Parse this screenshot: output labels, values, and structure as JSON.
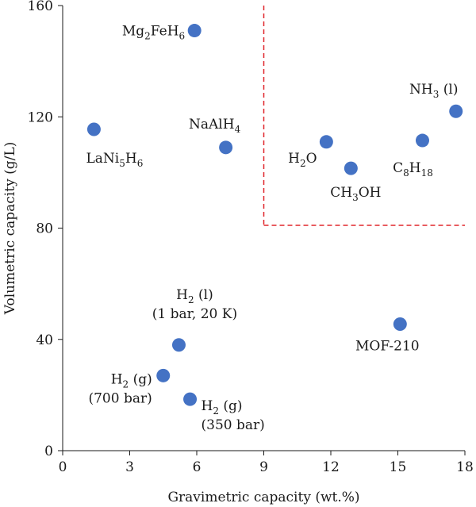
{
  "chart_data": {
    "type": "scatter",
    "xlabel": "Gravimetric capacity (wt.%)",
    "ylabel": "Volumetric capacity (g/L)",
    "xlim": [
      0,
      18
    ],
    "ylim": [
      0,
      160
    ],
    "xticks": [
      0,
      3,
      6,
      9,
      12,
      15,
      18
    ],
    "yticks": [
      0,
      40,
      80,
      120,
      160
    ],
    "grid": false,
    "marker_color": "#4472c4",
    "region_color": "#e0262b",
    "region": {
      "x_min": 9,
      "y_min": 81
    },
    "points": [
      {
        "x": 5.9,
        "y": 151,
        "label": [
          {
            "t": "Mg"
          },
          {
            "t": "2",
            "sub": true
          },
          {
            "t": "FeH"
          },
          {
            "t": "6",
            "sub": true
          }
        ]
      },
      {
        "x": 1.4,
        "y": 115.5,
        "label": [
          {
            "t": "LaNi"
          },
          {
            "t": "5",
            "sub": true
          },
          {
            "t": "H"
          },
          {
            "t": "6",
            "sub": true
          }
        ]
      },
      {
        "x": 7.3,
        "y": 109,
        "label": [
          {
            "t": "NaAlH"
          },
          {
            "t": "4",
            "sub": true
          }
        ]
      },
      {
        "x": 11.8,
        "y": 111,
        "label": [
          {
            "t": "H"
          },
          {
            "t": "2",
            "sub": true
          },
          {
            "t": "O"
          }
        ]
      },
      {
        "x": 12.9,
        "y": 101.5,
        "label": [
          {
            "t": "CH"
          },
          {
            "t": "3",
            "sub": true
          },
          {
            "t": "OH"
          }
        ]
      },
      {
        "x": 16.1,
        "y": 111.5,
        "label": [
          {
            "t": "C"
          },
          {
            "t": "8",
            "sub": true
          },
          {
            "t": "H"
          },
          {
            "t": "18",
            "sub": true
          }
        ]
      },
      {
        "x": 17.6,
        "y": 122,
        "label": [
          {
            "t": "NH"
          },
          {
            "t": "3",
            "sub": true
          },
          {
            "t": " (l)"
          }
        ]
      },
      {
        "x": 15.1,
        "y": 45.5,
        "label": [
          {
            "t": "MOF-210"
          }
        ]
      },
      {
        "x": 5.2,
        "y": 38,
        "label": [
          {
            "t": "H"
          },
          {
            "t": "2",
            "sub": true
          },
          {
            "t": " (l)"
          }
        ],
        "label2": "(1 bar, 20 K)"
      },
      {
        "x": 4.5,
        "y": 27,
        "label": [
          {
            "t": "H"
          },
          {
            "t": "2",
            "sub": true
          },
          {
            "t": " (g)"
          }
        ],
        "label2": "(700 bar)"
      },
      {
        "x": 5.7,
        "y": 18.5,
        "label": [
          {
            "t": "H"
          },
          {
            "t": "2",
            "sub": true
          },
          {
            "t": " (g)"
          }
        ],
        "label2": "(350 bar)"
      }
    ]
  }
}
